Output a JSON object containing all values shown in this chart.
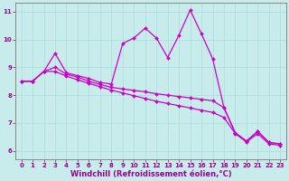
{
  "xlabel": "Windchill (Refroidissement éolien,°C)",
  "bg_color": "#c8ecec",
  "line_color": "#cc00cc",
  "grid_color": "#aadddd",
  "axis_color": "#990099",
  "spine_color": "#888888",
  "xlim": [
    -0.5,
    23.5
  ],
  "ylim": [
    5.7,
    11.3
  ],
  "xticks": [
    0,
    1,
    2,
    3,
    4,
    5,
    6,
    7,
    8,
    9,
    10,
    11,
    12,
    13,
    14,
    15,
    16,
    17,
    18,
    19,
    20,
    21,
    22,
    23
  ],
  "yticks": [
    6,
    7,
    8,
    9,
    10,
    11
  ],
  "line1_x": [
    0,
    1,
    2,
    3,
    4,
    5,
    6,
    7,
    8,
    9,
    10,
    11,
    12,
    13,
    14,
    15,
    16,
    17,
    18,
    19,
    20,
    21,
    22,
    23
  ],
  "line1_y": [
    8.5,
    8.5,
    8.85,
    9.5,
    8.8,
    8.7,
    8.6,
    8.45,
    8.4,
    9.85,
    10.05,
    10.4,
    10.05,
    9.35,
    10.15,
    11.05,
    10.2,
    9.3,
    7.55,
    6.65,
    6.35,
    6.7,
    6.3,
    6.25
  ],
  "line2_x": [
    0,
    1,
    2,
    3,
    4,
    5,
    6,
    7,
    8,
    9,
    10,
    11,
    12,
    13,
    14,
    15,
    16,
    17,
    18,
    19,
    20,
    21,
    22,
    23
  ],
  "line2_y": [
    8.5,
    8.5,
    8.85,
    9.0,
    8.75,
    8.65,
    8.5,
    8.38,
    8.28,
    8.22,
    8.17,
    8.12,
    8.05,
    8.0,
    7.95,
    7.9,
    7.85,
    7.8,
    7.55,
    6.65,
    6.35,
    6.7,
    6.3,
    6.25
  ],
  "line3_x": [
    0,
    1,
    2,
    3,
    4,
    5,
    6,
    7,
    8,
    9,
    10,
    11,
    12,
    13,
    14,
    15,
    16,
    17,
    18,
    19,
    20,
    21,
    22,
    23
  ],
  "line3_y": [
    8.5,
    8.5,
    8.85,
    8.85,
    8.68,
    8.55,
    8.42,
    8.3,
    8.18,
    8.08,
    7.98,
    7.88,
    7.78,
    7.7,
    7.62,
    7.54,
    7.46,
    7.38,
    7.2,
    6.62,
    6.32,
    6.62,
    6.25,
    6.2
  ],
  "marker": "D",
  "markersize": 2.0,
  "linewidth": 0.9,
  "tick_fontsize": 5,
  "xlabel_fontsize": 6
}
